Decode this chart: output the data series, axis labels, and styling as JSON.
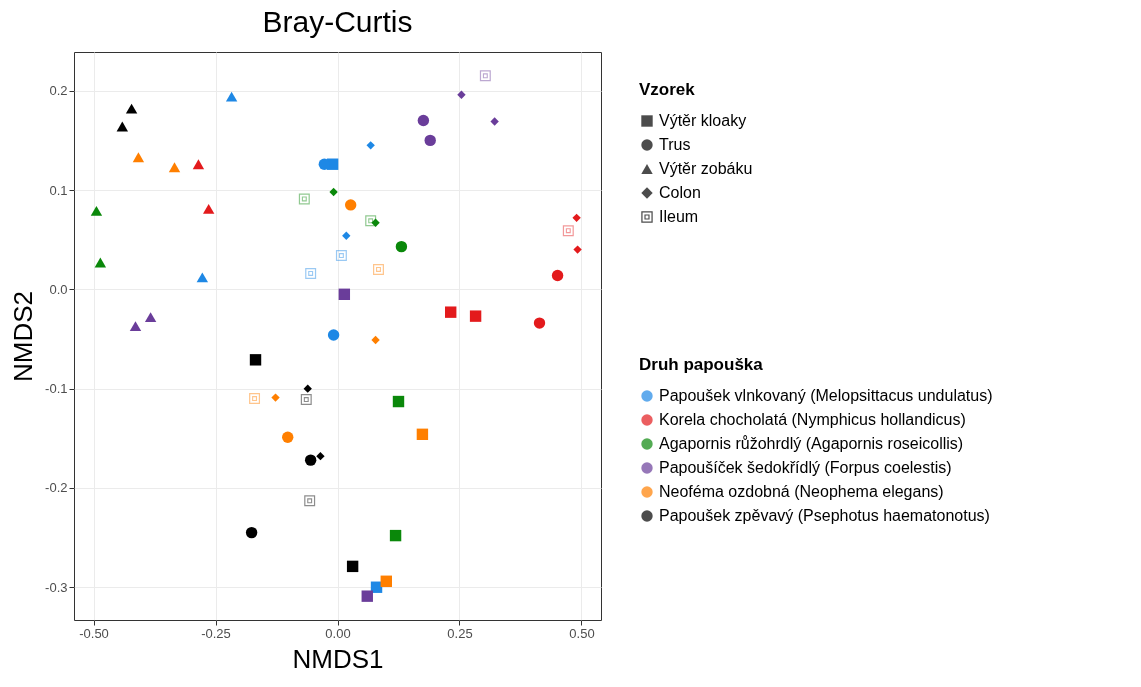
{
  "chart_data": {
    "type": "scatter",
    "title": "Bray-Curtis",
    "xlabel": "NMDS1",
    "ylabel": "NMDS2",
    "legend_title": "Vzorek",
    "legend": "right",
    "grid": true,
    "xlim": [
      -0.54,
      0.54
    ],
    "ylim": [
      -0.333,
      0.239
    ],
    "xticks": [
      {
        "value": -0.5,
        "label": "-0.50"
      },
      {
        "value": -0.25,
        "label": "-0.25"
      },
      {
        "value": 0,
        "label": "0.00"
      },
      {
        "value": 0.25,
        "label": "0.25"
      },
      {
        "value": 0.5,
        "label": "0.50"
      }
    ],
    "yticks": [
      -0.3,
      -0.2,
      -0.1,
      {
        "value": 0,
        "label": "0.0"
      },
      0.1,
      0.2
    ],
    "annotations": [
      "Druh papouška",
      "Papoušek vlnkovaný (Melopsittacus undulatus)",
      "Korela chocholatá (Nymphicus hollandicus)",
      "Agapornis růžohrdlý (Agapornis roseicollis)",
      "Papoušíček šedokřídlý (Forpus coelestis)",
      "Neoféma ozdobná (Neophema elegans)",
      "Papoušek zpěvavý (Psephotus haematonotus)"
    ],
    "series": [
      {
        "name": "Výtěr kloaky",
        "marker": "square",
        "x": [
          -0.01,
          0.08,
          0.232,
          0.283,
          0.125,
          0.119,
          0.014,
          0.061,
          0.174,
          0.1,
          -0.168,
          0.031
        ],
        "values": [
          0.126,
          -0.3,
          -0.023,
          -0.027,
          -0.113,
          -0.248,
          -0.005,
          -0.309,
          -0.146,
          -0.294,
          -0.071,
          -0.279
        ],
        "colors": [
          "#1e88e5",
          "#1e88e5",
          "#e31a1c",
          "#e31a1c",
          "#0a880a",
          "#0a880a",
          "#6a3d9a",
          "#6a3d9a",
          "#ff7f00",
          "#ff7f00",
          "#000000",
          "#000000"
        ]
      },
      {
        "name": "Trus",
        "marker": "circle",
        "x": [
          -0.027,
          -0.008,
          0.451,
          0.414,
          0.131,
          0.176,
          0.19,
          0.027,
          -0.102,
          -0.055,
          -0.176
        ],
        "values": [
          0.126,
          -0.046,
          0.014,
          -0.034,
          0.043,
          0.17,
          0.15,
          0.085,
          -0.149,
          -0.172,
          -0.245
        ],
        "colors": [
          "#1e88e5",
          "#1e88e5",
          "#e31a1c",
          "#e31a1c",
          "#0a880a",
          "#6a3d9a",
          "#6a3d9a",
          "#ff7f00",
          "#ff7f00",
          "#000000",
          "#000000"
        ]
      },
      {
        "name": "Výtěr zobáku",
        "marker": "triangle",
        "x": [
          -0.217,
          -0.277,
          -0.285,
          -0.264,
          -0.494,
          -0.486,
          -0.414,
          -0.383,
          -0.408,
          -0.334,
          -0.422,
          -0.441
        ],
        "values": [
          0.194,
          0.012,
          0.126,
          0.081,
          0.079,
          0.027,
          -0.037,
          -0.028,
          0.133,
          0.123,
          0.182,
          0.164
        ],
        "colors": [
          "#1e88e5",
          "#1e88e5",
          "#e31a1c",
          "#e31a1c",
          "#0a880a",
          "#0a880a",
          "#6a3d9a",
          "#6a3d9a",
          "#ff7f00",
          "#ff7f00",
          "#000000",
          "#000000"
        ]
      },
      {
        "name": "Colon",
        "marker": "diamond",
        "x": [
          0.068,
          0.018,
          0.49,
          0.492,
          -0.008,
          0.078,
          0.254,
          0.322,
          0.078,
          -0.127,
          -0.061,
          -0.035
        ],
        "values": [
          0.145,
          0.054,
          0.072,
          0.04,
          0.098,
          0.067,
          0.196,
          0.169,
          -0.051,
          -0.109,
          -0.1,
          -0.168
        ],
        "colors": [
          "#1e88e5",
          "#1e88e5",
          "#e31a1c",
          "#e31a1c",
          "#0a880a",
          "#0a880a",
          "#6a3d9a",
          "#6a3d9a",
          "#ff7f00",
          "#ff7f00",
          "#000000",
          "#000000"
        ]
      },
      {
        "name": "Ileum",
        "x": [
          0.008,
          -0.055,
          0.473,
          -0.068,
          0.068,
          0.303,
          0.084,
          -0.17,
          -0.064,
          -0.057
        ],
        "values": [
          0.034,
          0.016,
          0.059,
          0.091,
          0.069,
          0.215,
          0.02,
          -0.11,
          -0.111,
          -0.213
        ],
        "colors": [
          "#1e88e5",
          "#1e88e5",
          "#e31a1c",
          "#0a880a",
          "#0a880a",
          "#6a3d9a",
          "#ff7f00",
          "#ff7f00",
          "#000000",
          "#000000"
        ]
      }
    ]
  }
}
